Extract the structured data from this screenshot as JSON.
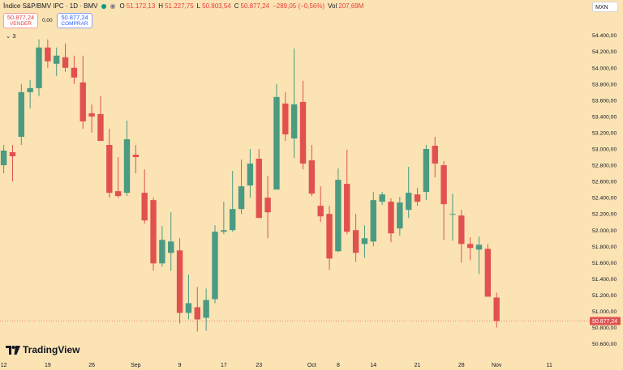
{
  "header": {
    "title": "Índice S&P/BMV IPC · 1D · BMV",
    "open_label": "O",
    "open": "51.172,13",
    "high_label": "H",
    "high": "51.227,75",
    "low_label": "L",
    "low": "50.803,54",
    "close_label": "C",
    "close": "50.877,24",
    "change": "−289,05 (−0,56%)",
    "vol_label": "Vol",
    "vol": "207,69M"
  },
  "sell": {
    "price": "50.877,24",
    "label": "VENDER"
  },
  "spread": "0,00",
  "buy": {
    "price": "50.877,24",
    "label": "COMPRAR"
  },
  "indicators_toggle": "⌄ 3",
  "currency": "MXN",
  "last_price_label": "50.877,24",
  "brand": "TradingView",
  "colors": {
    "up": "#4a9b82",
    "down": "#e15150",
    "background": "#fbe3b4",
    "last_price": "#e15150"
  },
  "chart_data": {
    "type": "candlestick",
    "y_range": [
      50500,
      54500
    ],
    "y_ticks": [
      "50.600,00",
      "50.800,00",
      "51.000,00",
      "51.200,00",
      "51.400,00",
      "51.600,00",
      "51.800,00",
      "52.000,00",
      "52.200,00",
      "52.400,00",
      "52.600,00",
      "52.800,00",
      "53.000,00",
      "53.200,00",
      "53.400,00",
      "53.600,00",
      "53.800,00",
      "54.000,00",
      "54.200,00",
      "54.400,00"
    ],
    "y_tick_values": [
      50600,
      50800,
      51000,
      51200,
      51400,
      51600,
      51800,
      52000,
      52200,
      52400,
      52600,
      52800,
      53000,
      53200,
      53400,
      53600,
      53800,
      54000,
      54200,
      54400
    ],
    "x_labels": [
      {
        "label": "12",
        "index": 0
      },
      {
        "label": "19",
        "index": 5
      },
      {
        "label": "26",
        "index": 10
      },
      {
        "label": "Sep",
        "index": 15
      },
      {
        "label": "9",
        "index": 20
      },
      {
        "label": "17",
        "index": 25
      },
      {
        "label": "23",
        "index": 29
      },
      {
        "label": "Oct",
        "index": 35
      },
      {
        "label": "8",
        "index": 38
      },
      {
        "label": "14",
        "index": 42
      },
      {
        "label": "21",
        "index": 47
      },
      {
        "label": "28",
        "index": 52
      },
      {
        "label": "Nov",
        "index": 56
      },
      {
        "label": "11",
        "index": 62
      }
    ],
    "candles": [
      {
        "o": 52800,
        "h": 53050,
        "l": 52700,
        "c": 52980
      },
      {
        "o": 52960,
        "h": 53050,
        "l": 52600,
        "c": 52910
      },
      {
        "o": 53150,
        "h": 53800,
        "l": 53050,
        "c": 53700
      },
      {
        "o": 53700,
        "h": 53850,
        "l": 53500,
        "c": 53750
      },
      {
        "o": 53750,
        "h": 54350,
        "l": 53650,
        "c": 54250
      },
      {
        "o": 54250,
        "h": 54350,
        "l": 54000,
        "c": 54080
      },
      {
        "o": 54050,
        "h": 54250,
        "l": 53900,
        "c": 54150
      },
      {
        "o": 54130,
        "h": 54300,
        "l": 53950,
        "c": 54000
      },
      {
        "o": 54000,
        "h": 54150,
        "l": 53800,
        "c": 53880
      },
      {
        "o": 53820,
        "h": 54150,
        "l": 53250,
        "c": 53340
      },
      {
        "o": 53440,
        "h": 53550,
        "l": 53200,
        "c": 53400
      },
      {
        "o": 53430,
        "h": 53650,
        "l": 53100,
        "c": 53100
      },
      {
        "o": 53050,
        "h": 53250,
        "l": 52400,
        "c": 52460
      },
      {
        "o": 52480,
        "h": 52900,
        "l": 52400,
        "c": 52420
      },
      {
        "o": 52460,
        "h": 53350,
        "l": 52420,
        "c": 53120
      },
      {
        "o": 52930,
        "h": 53050,
        "l": 52700,
        "c": 52900
      },
      {
        "o": 52460,
        "h": 52750,
        "l": 52080,
        "c": 52120
      },
      {
        "o": 52370,
        "h": 52400,
        "l": 51500,
        "c": 51590
      },
      {
        "o": 51590,
        "h": 52050,
        "l": 51550,
        "c": 51880
      },
      {
        "o": 51720,
        "h": 52220,
        "l": 51500,
        "c": 51860
      },
      {
        "o": 51750,
        "h": 51900,
        "l": 50850,
        "c": 50980
      },
      {
        "o": 50980,
        "h": 51450,
        "l": 50900,
        "c": 51100
      },
      {
        "o": 51050,
        "h": 51300,
        "l": 50750,
        "c": 50900
      },
      {
        "o": 50920,
        "h": 51280,
        "l": 50760,
        "c": 51140
      },
      {
        "o": 51150,
        "h": 52060,
        "l": 51100,
        "c": 51980
      },
      {
        "o": 51980,
        "h": 52350,
        "l": 51950,
        "c": 52000
      },
      {
        "o": 52000,
        "h": 52730,
        "l": 51980,
        "c": 52260
      },
      {
        "o": 52260,
        "h": 52870,
        "l": 52200,
        "c": 52540
      },
      {
        "o": 52550,
        "h": 53000,
        "l": 52400,
        "c": 52820
      },
      {
        "o": 52880,
        "h": 53000,
        "l": 52150,
        "c": 52150
      },
      {
        "o": 52400,
        "h": 52670,
        "l": 51900,
        "c": 52220
      },
      {
        "o": 52500,
        "h": 53800,
        "l": 52500,
        "c": 53640
      },
      {
        "o": 53560,
        "h": 53700,
        "l": 53100,
        "c": 53180
      },
      {
        "o": 53130,
        "h": 54240,
        "l": 52890,
        "c": 53550
      },
      {
        "o": 53580,
        "h": 53840,
        "l": 52750,
        "c": 52820
      },
      {
        "o": 52860,
        "h": 53050,
        "l": 52420,
        "c": 52450
      },
      {
        "o": 52300,
        "h": 52540,
        "l": 52100,
        "c": 52170
      },
      {
        "o": 52200,
        "h": 52300,
        "l": 51510,
        "c": 51650
      },
      {
        "o": 51740,
        "h": 52760,
        "l": 51730,
        "c": 52620
      },
      {
        "o": 52570,
        "h": 52990,
        "l": 51950,
        "c": 51980
      },
      {
        "o": 52000,
        "h": 52200,
        "l": 51610,
        "c": 51720
      },
      {
        "o": 51830,
        "h": 52060,
        "l": 51660,
        "c": 51900
      },
      {
        "o": 51860,
        "h": 52470,
        "l": 51800,
        "c": 52370
      },
      {
        "o": 52350,
        "h": 52470,
        "l": 52310,
        "c": 52440
      },
      {
        "o": 52350,
        "h": 52390,
        "l": 51850,
        "c": 51960
      },
      {
        "o": 52020,
        "h": 52410,
        "l": 51930,
        "c": 52340
      },
      {
        "o": 52250,
        "h": 52780,
        "l": 52150,
        "c": 52460
      },
      {
        "o": 52440,
        "h": 52520,
        "l": 52300,
        "c": 52350
      },
      {
        "o": 52470,
        "h": 53050,
        "l": 52370,
        "c": 53000
      },
      {
        "o": 53040,
        "h": 53150,
        "l": 52650,
        "c": 52820
      },
      {
        "o": 52800,
        "h": 52850,
        "l": 51880,
        "c": 52320
      },
      {
        "o": 52190,
        "h": 52450,
        "l": 51870,
        "c": 52200
      },
      {
        "o": 52180,
        "h": 52250,
        "l": 51600,
        "c": 51830
      },
      {
        "o": 51830,
        "h": 51910,
        "l": 51630,
        "c": 51780
      },
      {
        "o": 51760,
        "h": 51920,
        "l": 51460,
        "c": 51820
      },
      {
        "o": 51770,
        "h": 51830,
        "l": 51180,
        "c": 51180
      },
      {
        "o": 51170,
        "h": 51230,
        "l": 50800,
        "c": 50880
      }
    ]
  }
}
